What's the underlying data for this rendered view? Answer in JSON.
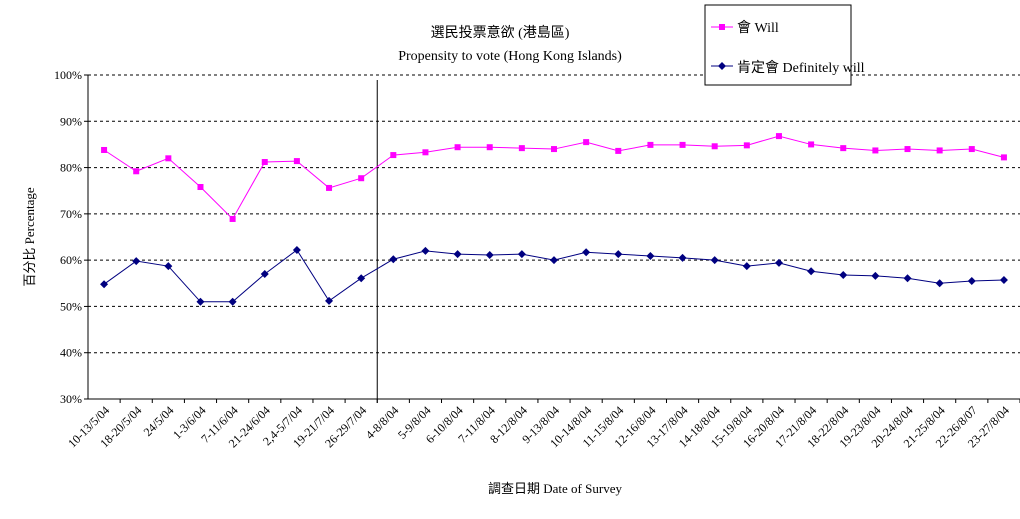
{
  "chart_data": {
    "type": "line",
    "title": "選民投票意欲 (港島區)",
    "subtitle": "Propensity to vote (Hong Kong Islands)",
    "xlabel": "調查日期 Date of Survey",
    "ylabel": "百分比 Percentage",
    "ylim": [
      30,
      100
    ],
    "yticks": [
      "30%",
      "40%",
      "50%",
      "60%",
      "70%",
      "80%",
      "90%",
      "100%"
    ],
    "grid": "horizontal dashed",
    "legend_position": "top-right",
    "categories": [
      "10-13/5/04",
      "18-20/5/04",
      "24/5/04",
      "1-3/6/04",
      "7-11/6/04",
      "21-24/6/04",
      "2,4-5/7/04",
      "19-21/7/04",
      "26-29/7/04",
      "4-8/8/04",
      "5-9/8/04",
      "6-10/8/04",
      "7-11/8/04",
      "8-12/8/04",
      "9-13/8/04",
      "10-14/8/04",
      "11-15/8/04",
      "12-16/8/04",
      "13-17/8/04",
      "14-18/8/04",
      "15-19/8/04",
      "16-20/8/04",
      "17-21/8/04",
      "18-22/8/04",
      "19-23/8/04",
      "20-24/8/04",
      "21-25/8/04",
      "22-26/8/07",
      "23-27/8/04"
    ],
    "series": [
      {
        "name": "會 Will",
        "color": "#ff00ff",
        "marker": "square",
        "values": [
          83.8,
          79.2,
          82.0,
          75.8,
          68.9,
          81.2,
          81.4,
          75.6,
          77.7,
          82.7,
          83.3,
          84.4,
          84.4,
          84.2,
          84.0,
          85.5,
          83.6,
          84.9,
          84.9,
          84.6,
          84.8,
          86.8,
          85.0,
          84.2,
          83.7,
          84.0,
          83.7,
          84.0,
          82.2
        ]
      },
      {
        "name": "肯定會 Definitely will",
        "color": "#000080",
        "marker": "diamond",
        "values": [
          54.8,
          59.8,
          58.7,
          51.0,
          51.0,
          57.0,
          62.2,
          51.2,
          56.1,
          60.2,
          62.0,
          61.3,
          61.1,
          61.3,
          60.0,
          61.7,
          61.3,
          60.9,
          60.5,
          60.0,
          58.7,
          59.4,
          57.6,
          56.8,
          56.6,
          56.1,
          55.0,
          55.5,
          55.7
        ]
      }
    ],
    "annotations": [
      "vertical divider after 26-29/7/04"
    ]
  }
}
